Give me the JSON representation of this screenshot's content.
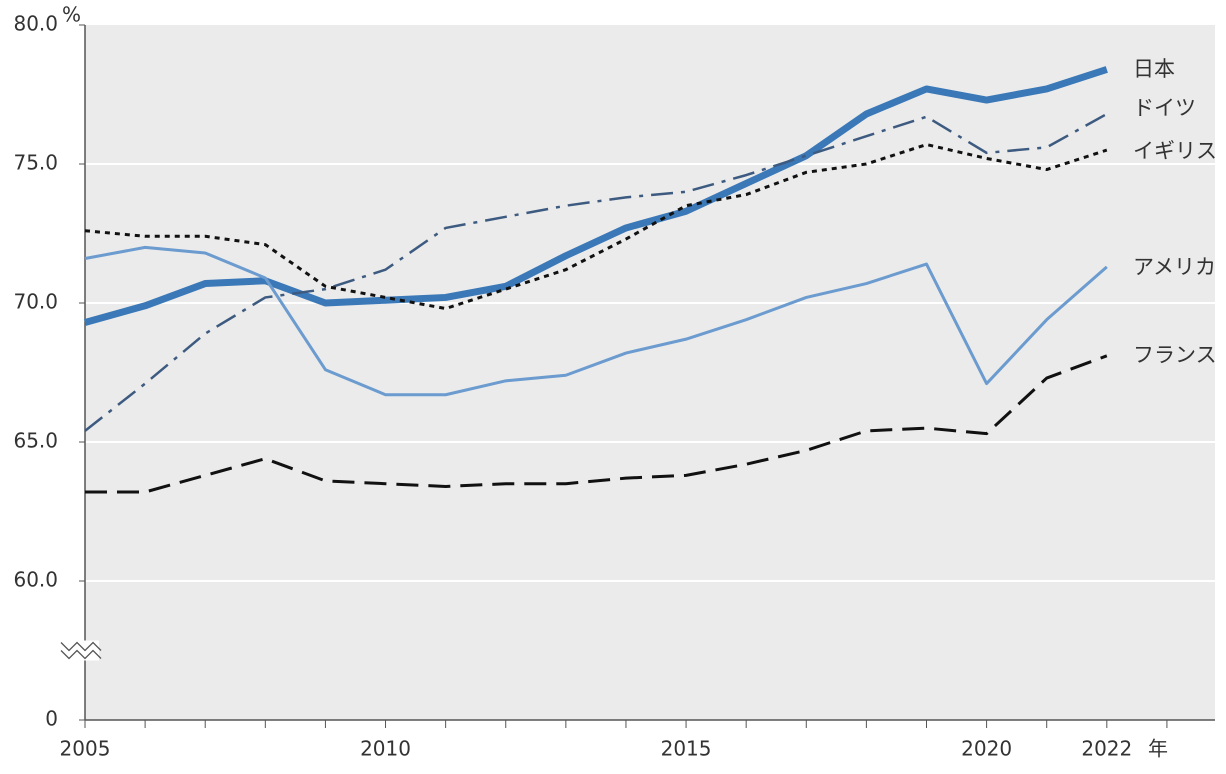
{
  "chart_data": {
    "type": "line",
    "y_unit": "%",
    "x_unit": "年",
    "x": [
      2005,
      2006,
      2007,
      2008,
      2009,
      2010,
      2011,
      2012,
      2013,
      2014,
      2015,
      2016,
      2017,
      2018,
      2019,
      2020,
      2021,
      2022
    ],
    "series": [
      {
        "name": "日本",
        "color": "#3a78b8",
        "width": 7,
        "dash": "solid",
        "values": [
          69.3,
          69.9,
          70.7,
          70.8,
          70.0,
          70.1,
          70.2,
          70.6,
          71.7,
          72.7,
          73.3,
          74.3,
          75.3,
          76.8,
          77.7,
          77.3,
          77.7,
          78.4
        ]
      },
      {
        "name": "ドイツ",
        "color": "#3d5a80",
        "width": 2.5,
        "dash": "dashdot",
        "values": [
          65.4,
          67.1,
          68.9,
          70.2,
          70.5,
          71.2,
          72.7,
          73.1,
          73.5,
          73.8,
          74.0,
          74.6,
          75.3,
          76.0,
          76.7,
          75.4,
          75.6,
          76.8
        ]
      },
      {
        "name": "イギリス",
        "color": "#111111",
        "width": 3,
        "dash": "dotted",
        "values": [
          72.6,
          72.4,
          72.4,
          72.1,
          70.6,
          70.2,
          69.8,
          70.5,
          71.2,
          72.3,
          73.5,
          73.9,
          74.7,
          75.0,
          75.7,
          75.2,
          74.8,
          75.5
        ]
      },
      {
        "name": "アメリカ",
        "color": "#6b9bcf",
        "width": 3,
        "dash": "solid",
        "values": [
          71.6,
          72.0,
          71.8,
          70.9,
          67.6,
          66.7,
          66.7,
          67.2,
          67.4,
          68.2,
          68.7,
          69.4,
          70.2,
          70.7,
          71.4,
          67.1,
          69.4,
          71.3
        ]
      },
      {
        "name": "フランス",
        "color": "#111111",
        "width": 3,
        "dash": "dashed",
        "values": [
          63.2,
          63.2,
          63.8,
          64.4,
          63.6,
          63.5,
          63.4,
          63.5,
          63.5,
          63.7,
          63.8,
          64.2,
          64.7,
          65.4,
          65.5,
          65.3,
          67.3,
          68.1
        ]
      }
    ],
    "xlim": [
      2005,
      2023.8
    ],
    "xticks": [
      2005,
      2010,
      2015,
      2020,
      2022
    ],
    "xminor_ticks": [
      2005,
      2006,
      2007,
      2008,
      2009,
      2010,
      2011,
      2012,
      2013,
      2014,
      2015,
      2016,
      2017,
      2018,
      2019,
      2020,
      2021,
      2022,
      2023
    ],
    "ylim": [
      0,
      80
    ],
    "yticks": [
      0,
      {
        "value": 60,
        "label": "60.0"
      },
      {
        "value": 65,
        "label": "65.0"
      },
      {
        "value": 70,
        "label": "70.0"
      },
      {
        "value": 75,
        "label": "75.0"
      },
      {
        "value": 80,
        "label": "80.0"
      }
    ],
    "axis_break": true,
    "grid": true
  }
}
